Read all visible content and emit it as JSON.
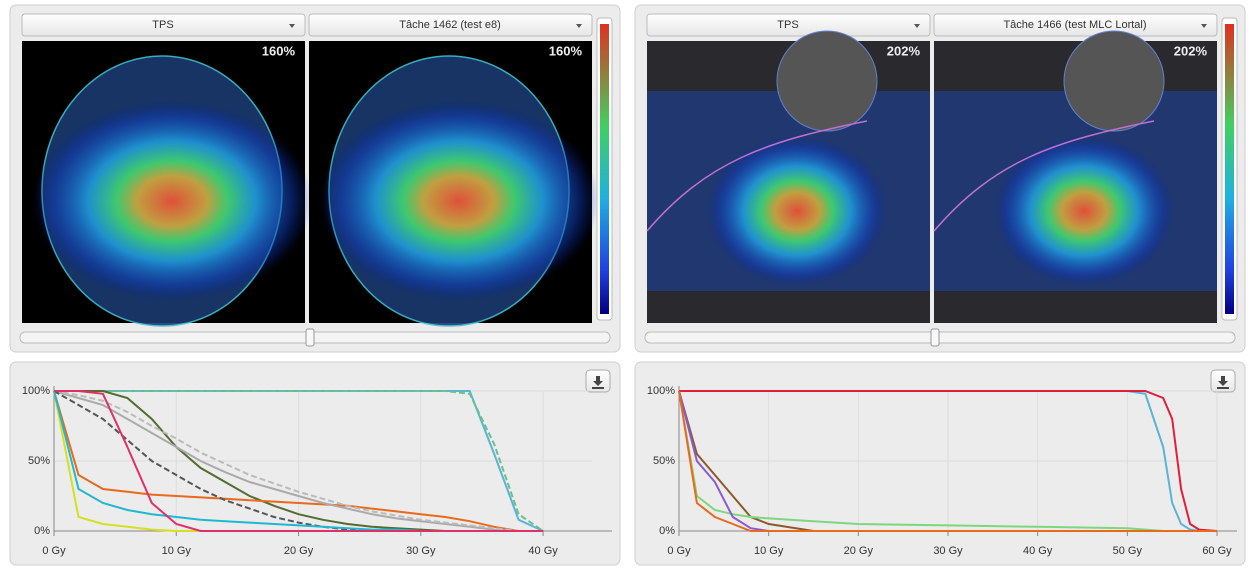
{
  "panels": [
    {
      "dropdowns": [
        "TPS",
        "Tâche 1462 (test e8)"
      ],
      "max_dose_labels": [
        "160%",
        "160%"
      ],
      "chart": {
        "type": "line",
        "x": [
          0,
          2,
          4,
          6,
          8,
          10,
          12,
          14,
          16,
          18,
          20,
          22,
          24,
          26,
          28,
          30,
          32,
          34,
          36,
          38,
          40
        ],
        "xlim": [
          0,
          44
        ],
        "xticks": [
          {
            "value": 0,
            "label": "0 Gy"
          },
          {
            "value": 10,
            "label": "10 Gy"
          },
          {
            "value": 20,
            "label": "20 Gy"
          },
          {
            "value": 30,
            "label": "30 Gy"
          },
          {
            "value": 40,
            "label": "40 Gy"
          }
        ],
        "ylim": [
          0,
          100
        ],
        "yticks": [
          {
            "value": 0,
            "label": "0%"
          },
          {
            "value": 50,
            "label": "50%"
          },
          {
            "value": 100,
            "label": "100%"
          }
        ],
        "grid": true,
        "series": [
          {
            "color": "#5ab4d6",
            "values": [
              100,
              100,
              100,
              100,
              100,
              100,
              100,
              100,
              100,
              100,
              100,
              100,
              100,
              100,
              100,
              100,
              100,
              100,
              55,
              8,
              0
            ]
          },
          {
            "color": "#6cc08a",
            "dashed": true,
            "values": [
              100,
              100,
              100,
              100,
              100,
              100,
              100,
              100,
              100,
              100,
              100,
              100,
              100,
              100,
              100,
              100,
              100,
              98,
              62,
              12,
              0
            ]
          },
          {
            "color": "#556b2f",
            "values": [
              100,
              100,
              100,
              95,
              80,
              60,
              45,
              35,
              25,
              18,
              12,
              8,
              5,
              3,
              2,
              1,
              0,
              0,
              0,
              0,
              0
            ]
          },
          {
            "color": "#e86a1a",
            "values": [
              100,
              40,
              30,
              28,
              26,
              25,
              24,
              23,
              22,
              21,
              20,
              19,
              18,
              16,
              14,
              12,
              10,
              7,
              3,
              0,
              0
            ]
          },
          {
            "color": "#aaaaaa",
            "values": [
              100,
              95,
              90,
              80,
              70,
              60,
              50,
              42,
              35,
              30,
              25,
              20,
              16,
              12,
              9,
              7,
              5,
              3,
              1,
              0,
              0
            ]
          },
          {
            "color": "#bbbbbb",
            "dashed": true,
            "values": [
              100,
              97,
              93,
              85,
              75,
              66,
              56,
              48,
              40,
              34,
              28,
              23,
              18,
              14,
              11,
              8,
              6,
              4,
              2,
              0,
              0
            ]
          },
          {
            "color": "#555555",
            "dashed": true,
            "values": [
              100,
              90,
              80,
              65,
              50,
              40,
              30,
              22,
              16,
              10,
              6,
              3,
              1,
              0,
              0,
              0,
              0,
              0,
              0,
              0,
              0
            ]
          },
          {
            "color": "#d4e020",
            "values": [
              100,
              10,
              5,
              3,
              1,
              0,
              0,
              0,
              0,
              0,
              0,
              0,
              0,
              0,
              0,
              0,
              0,
              0,
              0,
              0,
              0
            ]
          },
          {
            "color": "#20b8d0",
            "values": [
              100,
              30,
              20,
              15,
              12,
              10,
              8,
              7,
              6,
              5,
              4,
              3,
              2,
              1,
              1,
              0,
              0,
              0,
              0,
              0,
              0
            ]
          },
          {
            "color": "#e0306a",
            "values": [
              100,
              100,
              98,
              60,
              20,
              5,
              0,
              0,
              0,
              0,
              0,
              0,
              0,
              0,
              0,
              0,
              0,
              0,
              0,
              0,
              0
            ]
          }
        ]
      }
    },
    {
      "dropdowns": [
        "TPS",
        "Tâche 1466 (test MLC Lortal)"
      ],
      "max_dose_labels": [
        "202%",
        "202%"
      ],
      "chart": {
        "type": "line",
        "x": [
          0,
          2,
          4,
          6,
          8,
          10,
          15,
          20,
          30,
          40,
          50,
          52,
          54,
          55,
          56,
          57,
          58,
          60
        ],
        "xlim": [
          0,
          60
        ],
        "xticks": [
          {
            "value": 0,
            "label": "0 Gy"
          },
          {
            "value": 10,
            "label": "10 Gy"
          },
          {
            "value": 20,
            "label": "20 Gy"
          },
          {
            "value": 30,
            "label": "30 Gy"
          },
          {
            "value": 40,
            "label": "40 Gy"
          },
          {
            "value": 50,
            "label": "50 Gy"
          },
          {
            "value": 60,
            "label": "60 Gy"
          }
        ],
        "ylim": [
          0,
          100
        ],
        "yticks": [
          {
            "value": 0,
            "label": "0%"
          },
          {
            "value": 50,
            "label": "50%"
          },
          {
            "value": 100,
            "label": "100%"
          }
        ],
        "grid": true,
        "series": [
          {
            "color": "#5ab4d6",
            "values": [
              100,
              100,
              100,
              100,
              100,
              100,
              100,
              100,
              100,
              100,
              100,
              98,
              60,
              20,
              5,
              1,
              0,
              0
            ]
          },
          {
            "color": "#e0203a",
            "values": [
              100,
              100,
              100,
              100,
              100,
              100,
              100,
              100,
              100,
              100,
              100,
              100,
              95,
              80,
              30,
              5,
              1,
              0
            ]
          },
          {
            "color": "#8b5a2b",
            "values": [
              100,
              55,
              40,
              25,
              10,
              5,
              0,
              0,
              0,
              0,
              0,
              0,
              0,
              0,
              0,
              0,
              0,
              0
            ]
          },
          {
            "color": "#7ed67e",
            "values": [
              100,
              25,
              15,
              12,
              10,
              9,
              7,
              5,
              4,
              3,
              2,
              1,
              0,
              0,
              0,
              0,
              0,
              0
            ]
          },
          {
            "color": "#8a5ad0",
            "values": [
              100,
              50,
              35,
              10,
              2,
              0,
              0,
              0,
              0,
              0,
              0,
              0,
              0,
              0,
              0,
              0,
              0,
              0
            ]
          },
          {
            "color": "#e86a1a",
            "values": [
              100,
              20,
              10,
              5,
              0,
              0,
              0,
              0,
              0,
              0,
              0,
              0,
              0,
              0,
              0,
              0,
              0,
              0
            ]
          }
        ]
      }
    }
  ]
}
